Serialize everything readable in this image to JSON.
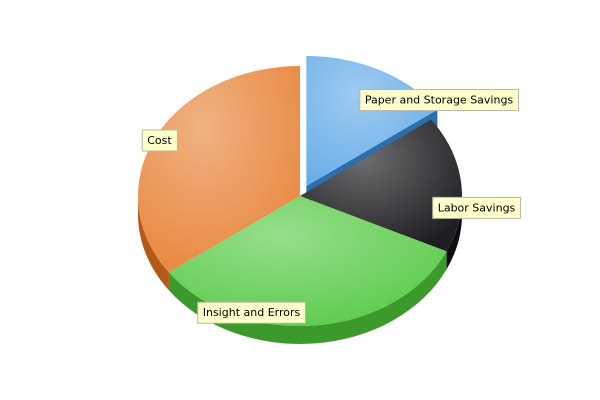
{
  "chart_data": {
    "type": "pie",
    "style": "3d-exploded",
    "categories": [
      "Paper and Storage Savings",
      "Labor Savings",
      "Insight and Errors",
      "Cost"
    ],
    "values": [
      15,
      17,
      33,
      35
    ],
    "exploded": [
      "Paper and Storage Savings"
    ],
    "colors": [
      "#6aaee8",
      "#1e1e22",
      "#5ccc4c",
      "#e8883f"
    ],
    "side_colors": [
      "#2d6fad",
      "#0f0f12",
      "#3c9a2c",
      "#b35a1a"
    ],
    "label_placement": "callout boxes",
    "title": "",
    "legend": "none"
  }
}
